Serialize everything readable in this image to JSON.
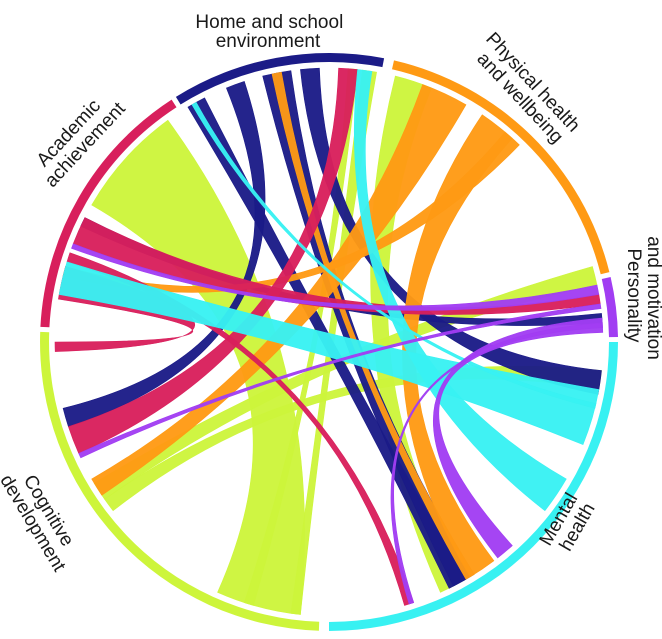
{
  "diagram": {
    "groups": [
      {
        "id": "home",
        "lines": [
          "Home and school",
          "environment"
        ],
        "color": "#1b1b87"
      },
      {
        "id": "physical",
        "lines": [
          "Physical health",
          "and wellbeing"
        ],
        "color": "#ff9a14"
      },
      {
        "id": "personality",
        "lines": [
          "Personality",
          "and motivation"
        ],
        "color": "#a13df2"
      },
      {
        "id": "mental",
        "lines": [
          "Mental",
          "health"
        ],
        "color": "#38f1f2"
      },
      {
        "id": "cognitive",
        "lines": [
          "Cognitive",
          "development"
        ],
        "color": "#cdf53b"
      },
      {
        "id": "academic",
        "lines": [
          "Academic",
          "achievement"
        ],
        "color": "#d81f5c"
      }
    ]
  }
}
